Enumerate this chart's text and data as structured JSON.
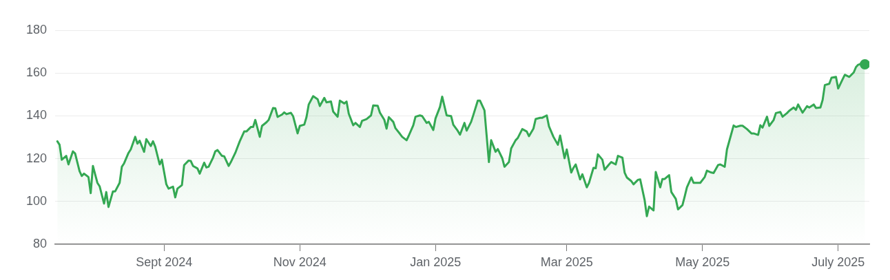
{
  "chart_data": {
    "type": "area",
    "grid": "y",
    "xlim": [
      "2024-07-14",
      "2025-07-15"
    ],
    "xticks": [
      {
        "value": "2024-09-01",
        "label": "Sept 2024"
      },
      {
        "value": "2024-11-01",
        "label": "Nov 2024"
      },
      {
        "value": "2025-01-01",
        "label": "Jan 2025"
      },
      {
        "value": "2025-03-01",
        "label": "Mar 2025"
      },
      {
        "value": "2025-05-01",
        "label": "May 2025"
      },
      {
        "value": "2025-07-01",
        "label": "July 2025"
      }
    ],
    "ylim": [
      80,
      180
    ],
    "yticks": [
      80,
      100,
      120,
      140,
      160,
      180
    ],
    "series": [
      {
        "color": "#34a853",
        "x": [
          "2024-07-15",
          "2024-07-16",
          "2024-07-17",
          "2024-07-19",
          "2024-07-20",
          "2024-07-22",
          "2024-07-23",
          "2024-07-25",
          "2024-07-26",
          "2024-07-27",
          "2024-07-29",
          "2024-07-30",
          "2024-07-31",
          "2024-08-02",
          "2024-08-03",
          "2024-08-05",
          "2024-08-06",
          "2024-08-07",
          "2024-08-09",
          "2024-08-10",
          "2024-08-12",
          "2024-08-13",
          "2024-08-14",
          "2024-08-16",
          "2024-08-17",
          "2024-08-19",
          "2024-08-20",
          "2024-08-21",
          "2024-08-23",
          "2024-08-24",
          "2024-08-26",
          "2024-08-27",
          "2024-08-28",
          "2024-08-30",
          "2024-08-31",
          "2024-09-02",
          "2024-09-03",
          "2024-09-05",
          "2024-09-06",
          "2024-09-07",
          "2024-09-09",
          "2024-09-10",
          "2024-09-12",
          "2024-09-13",
          "2024-09-14",
          "2024-09-16",
          "2024-09-17",
          "2024-09-19",
          "2024-09-20",
          "2024-09-21",
          "2024-09-23",
          "2024-09-24",
          "2024-09-25",
          "2024-09-27",
          "2024-09-28",
          "2024-09-30",
          "2024-10-01",
          "2024-10-03",
          "2024-10-04",
          "2024-10-05",
          "2024-10-07",
          "2024-10-08",
          "2024-10-10",
          "2024-10-11",
          "2024-10-12",
          "2024-10-14",
          "2024-10-15",
          "2024-10-17",
          "2024-10-18",
          "2024-10-20",
          "2024-10-21",
          "2024-10-22",
          "2024-10-24",
          "2024-10-25",
          "2024-10-26",
          "2024-10-28",
          "2024-10-29",
          "2024-10-31",
          "2024-11-01",
          "2024-11-03",
          "2024-11-04",
          "2024-11-05",
          "2024-11-07",
          "2024-11-09",
          "2024-11-10",
          "2024-11-12",
          "2024-11-13",
          "2024-11-15",
          "2024-11-16",
          "2024-11-18",
          "2024-11-19",
          "2024-11-21",
          "2024-11-22",
          "2024-11-23",
          "2024-11-25",
          "2024-11-26",
          "2024-11-28",
          "2024-11-29",
          "2024-12-01",
          "2024-12-03",
          "2024-12-04",
          "2024-12-06",
          "2024-12-07",
          "2024-12-09",
          "2024-12-10",
          "2024-12-11",
          "2024-12-13",
          "2024-12-14",
          "2024-12-16",
          "2024-12-17",
          "2024-12-19",
          "2024-12-20",
          "2024-12-22",
          "2024-12-23",
          "2024-12-25",
          "2024-12-26",
          "2024-12-28",
          "2024-12-29",
          "2024-12-31",
          "2025-01-01",
          "2025-01-03",
          "2025-01-04",
          "2025-01-06",
          "2025-01-08",
          "2025-01-09",
          "2025-01-11",
          "2025-01-12",
          "2025-01-14",
          "2025-01-15",
          "2025-01-17",
          "2025-01-18",
          "2025-01-20",
          "2025-01-21",
          "2025-01-23",
          "2025-01-25",
          "2025-01-26",
          "2025-01-28",
          "2025-01-29",
          "2025-01-31",
          "2025-02-01",
          "2025-02-03",
          "2025-02-04",
          "2025-02-06",
          "2025-02-07",
          "2025-02-09",
          "2025-02-11",
          "2025-02-12",
          "2025-02-14",
          "2025-02-15",
          "2025-02-17",
          "2025-02-18",
          "2025-02-20",
          "2025-02-21",
          "2025-02-23",
          "2025-02-25",
          "2025-02-26",
          "2025-02-28",
          "2025-03-01",
          "2025-03-03",
          "2025-03-04",
          "2025-03-05",
          "2025-03-07",
          "2025-03-08",
          "2025-03-10",
          "2025-03-11",
          "2025-03-13",
          "2025-03-14",
          "2025-03-15",
          "2025-03-17",
          "2025-03-18",
          "2025-03-20",
          "2025-03-21",
          "2025-03-23",
          "2025-03-24",
          "2025-03-26",
          "2025-03-27",
          "2025-03-28",
          "2025-03-30",
          "2025-03-31",
          "2025-04-02",
          "2025-04-03",
          "2025-04-05",
          "2025-04-06",
          "2025-04-07",
          "2025-04-09",
          "2025-04-10",
          "2025-04-12",
          "2025-04-13",
          "2025-04-14",
          "2025-04-16",
          "2025-04-17",
          "2025-04-19",
          "2025-04-20",
          "2025-04-22",
          "2025-04-23",
          "2025-04-24",
          "2025-04-26",
          "2025-04-27",
          "2025-04-29",
          "2025-04-30",
          "2025-05-02",
          "2025-05-03",
          "2025-05-05",
          "2025-05-06",
          "2025-05-08",
          "2025-05-09",
          "2025-05-11",
          "2025-05-12",
          "2025-05-15",
          "2025-05-16",
          "2025-05-18",
          "2025-05-19",
          "2025-05-21",
          "2025-05-23",
          "2025-05-24",
          "2025-05-26",
          "2025-05-27",
          "2025-05-28",
          "2025-05-30",
          "2025-05-31",
          "2025-06-02",
          "2025-06-03",
          "2025-06-05",
          "2025-06-06",
          "2025-06-08",
          "2025-06-09",
          "2025-06-11",
          "2025-06-12",
          "2025-06-13",
          "2025-06-15",
          "2025-06-17",
          "2025-06-18",
          "2025-06-20",
          "2025-06-21",
          "2025-06-23",
          "2025-06-24",
          "2025-06-25",
          "2025-06-27",
          "2025-06-28",
          "2025-06-30",
          "2025-07-01",
          "2025-07-03",
          "2025-07-04",
          "2025-07-06",
          "2025-07-08",
          "2025-07-09",
          "2025-07-10",
          "2025-07-12",
          "2025-07-13"
        ],
        "values": [
          128.1,
          126.5,
          119.5,
          121.3,
          117.3,
          123.4,
          122.4,
          114.1,
          111.9,
          113,
          111.4,
          103.9,
          116.6,
          108.7,
          107.1,
          99,
          104.4,
          97.4,
          104.7,
          104.7,
          108.7,
          116.2,
          117.8,
          122.7,
          124.3,
          130.2,
          127,
          128.4,
          123.2,
          129.1,
          125.9,
          128.1,
          125.6,
          117.3,
          119.5,
          108,
          106,
          106.9,
          101.9,
          106,
          107.6,
          117,
          119.1,
          118.9,
          116.6,
          115.4,
          113,
          118.1,
          115.9,
          116.2,
          120.5,
          123.4,
          124,
          121.3,
          121.1,
          116.6,
          118.4,
          122.7,
          125.4,
          128.1,
          132.7,
          132.7,
          134.8,
          134.8,
          138.1,
          130.2,
          135.3,
          137,
          138.1,
          143.7,
          143.5,
          139.5,
          140.6,
          141.6,
          140.8,
          141.4,
          139.8,
          131.8,
          135.3,
          135.9,
          139.4,
          145.3,
          149.2,
          147.8,
          144.6,
          148.4,
          146.3,
          146.7,
          142,
          139.6,
          147.1,
          145.8,
          146.7,
          141,
          135.6,
          136.7,
          134.8,
          137.7,
          138.5,
          140.2,
          144.9,
          144.7,
          141.5,
          138.1,
          134,
          139.4,
          137.2,
          134.2,
          131.6,
          130.2,
          128.6,
          130.8,
          135.6,
          139.6,
          140.2,
          139.9,
          136.7,
          137.2,
          133.4,
          138.8,
          144.2,
          149,
          140.2,
          139.9,
          135.8,
          133,
          131.2,
          136.7,
          133.1,
          137.2,
          140.4,
          147.1,
          147.1,
          142.6,
          118.4,
          128.6,
          123.2,
          124.5,
          120.2,
          116.2,
          118.4,
          124.8,
          128.6,
          129.7,
          133.8,
          132.7,
          130.5,
          134,
          138.5,
          139.1,
          139.1,
          140.2,
          135.1,
          130.2,
          126.5,
          130.8,
          120.2,
          124.3,
          113.5,
          115.7,
          117.3,
          110.3,
          112.7,
          106.6,
          108.7,
          115.7,
          115.5,
          122,
          119.5,
          114.8,
          117.3,
          118.4,
          117.3,
          121.3,
          120.5,
          113.5,
          111.2,
          109.5,
          108,
          110.1,
          110.3,
          100.6,
          93.1,
          97.6,
          95.8,
          113.8,
          106.6,
          110.5,
          110.5,
          112.3,
          104.4,
          101.2,
          96.3,
          98.3,
          102.3,
          106.6,
          111.2,
          108.7,
          108.7,
          108.7,
          111.4,
          114.4,
          113.5,
          113.3,
          117,
          117.3,
          116.2,
          124.3,
          135.5,
          134.8,
          135.4,
          135.4,
          133.8,
          131.8,
          131.8,
          131.1,
          135.6,
          134.5,
          139.6,
          135.3,
          138.1,
          141.3,
          141.8,
          139.6,
          141.3,
          142.4,
          143.9,
          142.8,
          145.3,
          141.5,
          144.5,
          143.9,
          145.3,
          143.7,
          143.9,
          147.4,
          154.4,
          155,
          157.8,
          158.2,
          152.8,
          157.1,
          159.2,
          158.2,
          160.3,
          162.8,
          163.9,
          164.6,
          164.1
        ]
      }
    ]
  }
}
